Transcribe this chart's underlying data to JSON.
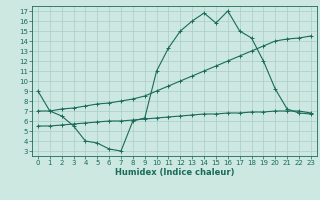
{
  "title": "",
  "xlabel": "Humidex (Indice chaleur)",
  "ylabel": "",
  "bg_color": "#cce8e0",
  "grid_color": "#aacccc",
  "line_color": "#1a6b5a",
  "xlim": [
    -0.5,
    23.5
  ],
  "ylim": [
    2.5,
    17.5
  ],
  "xticks": [
    0,
    1,
    2,
    3,
    4,
    5,
    6,
    7,
    8,
    9,
    10,
    11,
    12,
    13,
    14,
    15,
    16,
    17,
    18,
    19,
    20,
    21,
    22,
    23
  ],
  "yticks": [
    3,
    4,
    5,
    6,
    7,
    8,
    9,
    10,
    11,
    12,
    13,
    14,
    15,
    16,
    17
  ],
  "curve1_x": [
    0,
    1,
    2,
    3,
    4,
    5,
    6,
    7,
    8,
    9,
    10,
    11,
    12,
    13,
    14,
    15,
    16,
    17,
    18,
    19,
    20,
    21,
    22,
    23
  ],
  "curve1_y": [
    9.0,
    7.0,
    6.5,
    5.5,
    4.0,
    3.8,
    3.2,
    3.0,
    6.0,
    6.3,
    11.0,
    13.3,
    15.0,
    16.0,
    16.8,
    15.8,
    17.0,
    15.0,
    14.3,
    12.0,
    9.2,
    7.2,
    6.8,
    6.7
  ],
  "curve2_x": [
    0,
    1,
    2,
    3,
    4,
    5,
    6,
    7,
    8,
    9,
    10,
    11,
    12,
    13,
    14,
    15,
    16,
    17,
    18,
    19,
    20,
    21,
    22,
    23
  ],
  "curve2_y": [
    7.0,
    7.0,
    7.2,
    7.3,
    7.5,
    7.7,
    7.8,
    8.0,
    8.2,
    8.5,
    9.0,
    9.5,
    10.0,
    10.5,
    11.0,
    11.5,
    12.0,
    12.5,
    13.0,
    13.5,
    14.0,
    14.2,
    14.3,
    14.5
  ],
  "curve3_x": [
    0,
    1,
    2,
    3,
    4,
    5,
    6,
    7,
    8,
    9,
    10,
    11,
    12,
    13,
    14,
    15,
    16,
    17,
    18,
    19,
    20,
    21,
    22,
    23
  ],
  "curve3_y": [
    5.5,
    5.5,
    5.6,
    5.7,
    5.8,
    5.9,
    6.0,
    6.0,
    6.1,
    6.2,
    6.3,
    6.4,
    6.5,
    6.6,
    6.7,
    6.7,
    6.8,
    6.8,
    6.9,
    6.9,
    7.0,
    7.0,
    7.0,
    6.8
  ],
  "xlabel_fontsize": 6.0,
  "tick_fontsize": 5.0
}
